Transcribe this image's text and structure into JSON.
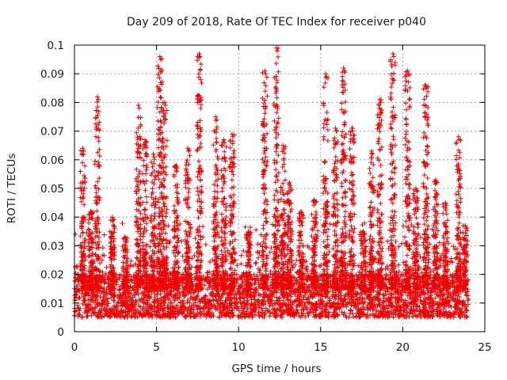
{
  "chart_data": {
    "type": "scatter",
    "title": "Day 209 of 2018, Rate Of TEC Index for receiver p040",
    "xlabel": "GPS time / hours",
    "ylabel": "ROTI / TECUs",
    "xlim": [
      0,
      25
    ],
    "ylim": [
      0,
      0.1
    ],
    "xticks": [
      "0",
      "5",
      "10",
      "15",
      "20",
      "25"
    ],
    "yticks": [
      "0",
      "0.01",
      "0.02",
      "0.03",
      "0.04",
      "0.05",
      "0.06",
      "0.07",
      "0.08",
      "0.09",
      "0.1"
    ],
    "grid": true,
    "marker": "plus",
    "color": "#ee0000",
    "x_data_range": [
      0,
      24
    ],
    "baseline_range": [
      0.005,
      0.02
    ],
    "peaks": [
      {
        "x": 0.5,
        "max": 0.064
      },
      {
        "x": 1.0,
        "max": 0.042
      },
      {
        "x": 1.4,
        "max": 0.082
      },
      {
        "x": 2.3,
        "max": 0.04
      },
      {
        "x": 3.1,
        "max": 0.033
      },
      {
        "x": 3.9,
        "max": 0.079
      },
      {
        "x": 4.3,
        "max": 0.067
      },
      {
        "x": 4.8,
        "max": 0.062
      },
      {
        "x": 5.2,
        "max": 0.096
      },
      {
        "x": 5.5,
        "max": 0.08
      },
      {
        "x": 6.2,
        "max": 0.058
      },
      {
        "x": 6.9,
        "max": 0.064
      },
      {
        "x": 7.6,
        "max": 0.097
      },
      {
        "x": 8.6,
        "max": 0.075
      },
      {
        "x": 9.1,
        "max": 0.067
      },
      {
        "x": 9.6,
        "max": 0.069
      },
      {
        "x": 10.6,
        "max": 0.035
      },
      {
        "x": 11.6,
        "max": 0.091
      },
      {
        "x": 12.3,
        "max": 0.099
      },
      {
        "x": 12.7,
        "max": 0.065
      },
      {
        "x": 13.1,
        "max": 0.052
      },
      {
        "x": 13.8,
        "max": 0.042
      },
      {
        "x": 14.6,
        "max": 0.046
      },
      {
        "x": 15.3,
        "max": 0.09
      },
      {
        "x": 15.9,
        "max": 0.071
      },
      {
        "x": 16.4,
        "max": 0.092
      },
      {
        "x": 16.9,
        "max": 0.071
      },
      {
        "x": 17.6,
        "max": 0.035
      },
      {
        "x": 18.1,
        "max": 0.063
      },
      {
        "x": 18.6,
        "max": 0.081
      },
      {
        "x": 19.4,
        "max": 0.097
      },
      {
        "x": 20.3,
        "max": 0.091
      },
      {
        "x": 20.8,
        "max": 0.05
      },
      {
        "x": 21.4,
        "max": 0.086
      },
      {
        "x": 22.0,
        "max": 0.053
      },
      {
        "x": 22.6,
        "max": 0.045
      },
      {
        "x": 23.4,
        "max": 0.068
      },
      {
        "x": 23.8,
        "max": 0.037
      }
    ]
  }
}
